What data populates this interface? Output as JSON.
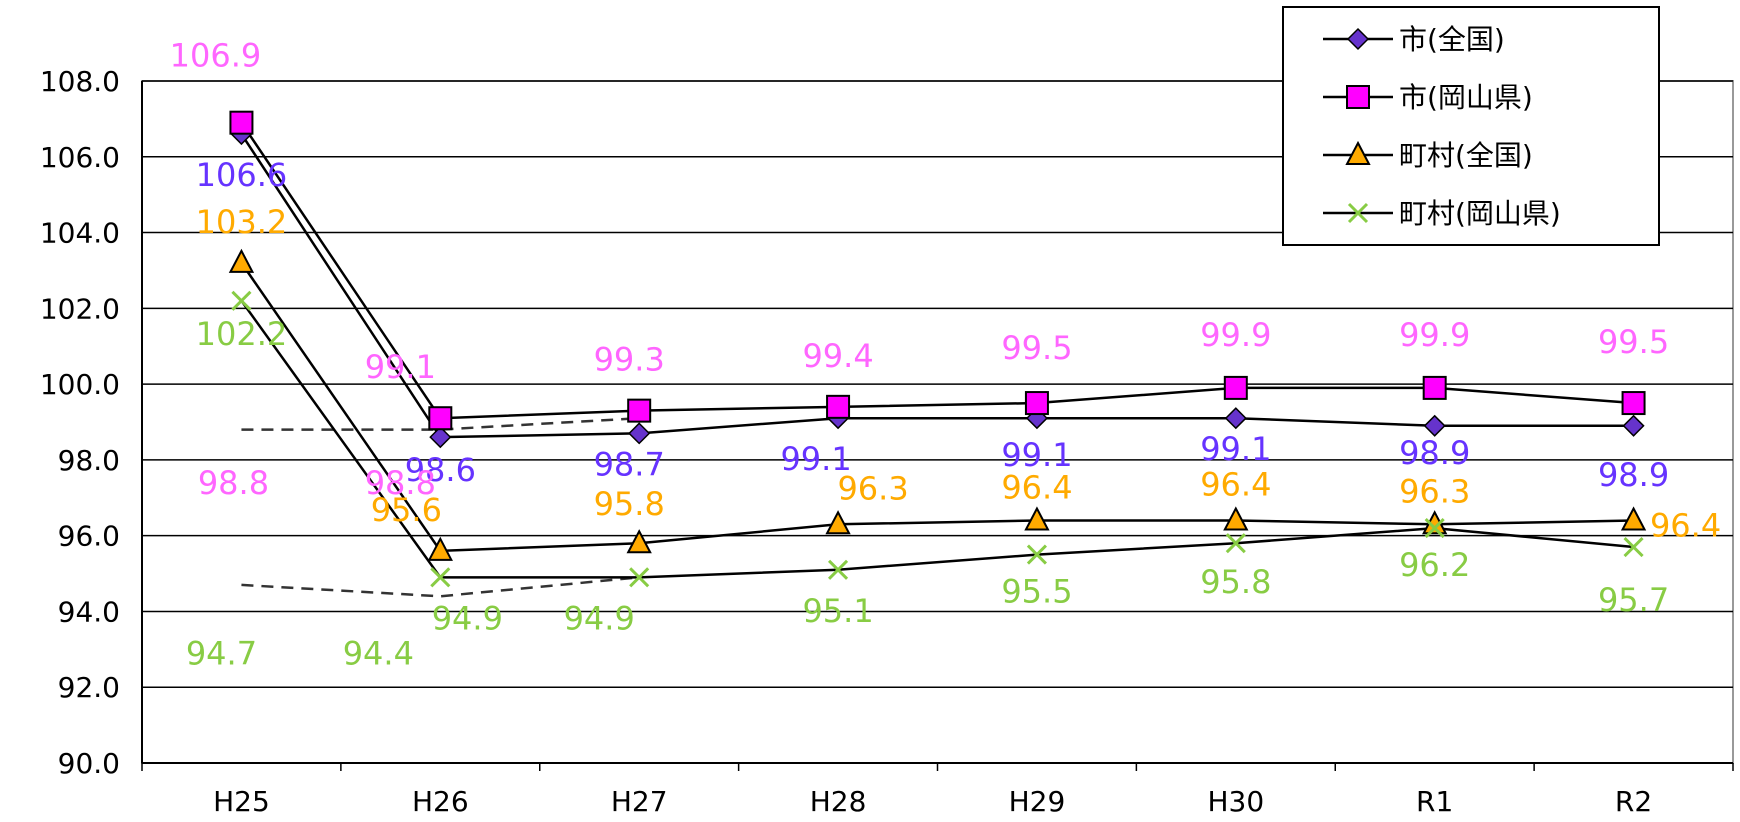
{
  "chart_data": {
    "type": "line",
    "categories": [
      "H25",
      "H26",
      "H27",
      "H28",
      "H29",
      "H30",
      "R1",
      "R2"
    ],
    "ylim": [
      90,
      108
    ],
    "yticks": [
      "90.0",
      "92.0",
      "94.0",
      "96.0",
      "98.0",
      "100.0",
      "102.0",
      "104.0",
      "106.0",
      "108.0"
    ],
    "grid": true,
    "legend_position": "top-right",
    "series": [
      {
        "name": "市(全国)",
        "values": [
          106.6,
          98.6,
          98.7,
          99.1,
          99.1,
          99.1,
          98.9,
          98.9
        ],
        "color": "#6633FF",
        "marker": "diamond",
        "marker_fill": "#6633CC"
      },
      {
        "name": "市(岡山県)",
        "values": [
          106.9,
          99.1,
          99.3,
          99.4,
          99.5,
          99.9,
          99.9,
          99.5
        ],
        "color": "#FF66FF",
        "marker": "square",
        "marker_fill": "#FF00FF"
      },
      {
        "name": "町村(全国)",
        "values": [
          103.2,
          95.6,
          95.8,
          96.3,
          96.4,
          96.4,
          96.3,
          96.4
        ],
        "color": "#FFAA00",
        "marker": "triangle",
        "marker_fill": "#FFAA00"
      },
      {
        "name": "町村(岡山県)",
        "values": [
          102.2,
          94.9,
          94.9,
          95.1,
          95.5,
          95.8,
          96.2,
          95.7
        ],
        "color": "#88CC44",
        "marker": "cross",
        "marker_fill": "#88CC44"
      }
    ],
    "reference_lines": [
      {
        "values": [
          98.8,
          98.8,
          99.1
        ],
        "label": "98.8",
        "label2": "98.8",
        "color": "#FF66FF"
      },
      {
        "values": [
          94.7,
          94.4,
          94.9
        ],
        "label": "94.7",
        "label2": "94.4",
        "color": "#88CC44"
      }
    ]
  }
}
